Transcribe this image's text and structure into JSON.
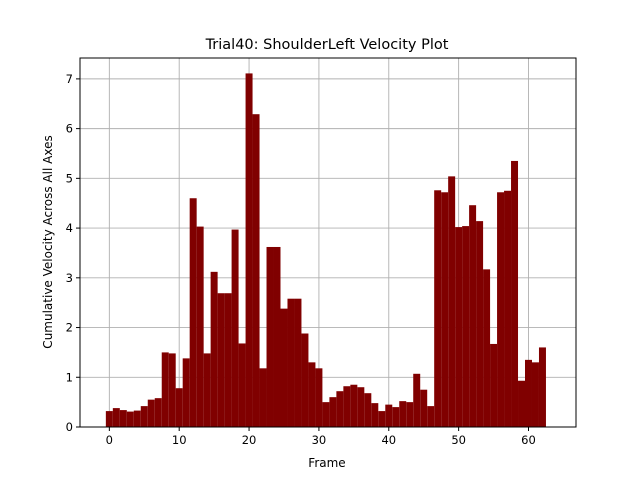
{
  "chart_data": {
    "type": "bar",
    "title": "Trial40: ShoulderLeft Velocity Plot",
    "xlabel": "Frame",
    "ylabel": "Cumulative Velocity Across All Axes",
    "xlim": [
      -4.2,
      66.8
    ],
    "ylim": [
      0,
      7.42
    ],
    "xticks": [
      0,
      10,
      20,
      30,
      40,
      50,
      60
    ],
    "yticks": [
      0,
      1,
      2,
      3,
      4,
      5,
      6,
      7
    ],
    "grid": true,
    "bar_color": "#800000",
    "x": [
      0,
      1,
      2,
      3,
      4,
      5,
      6,
      7,
      8,
      9,
      10,
      11,
      12,
      13,
      14,
      15,
      16,
      17,
      18,
      19,
      20,
      21,
      22,
      23,
      24,
      25,
      26,
      27,
      28,
      29,
      30,
      31,
      32,
      33,
      34,
      35,
      36,
      37,
      38,
      39,
      40,
      41,
      42,
      43,
      44,
      45,
      46,
      47,
      48,
      49,
      50,
      51,
      52,
      53,
      54,
      55,
      56,
      57,
      58,
      59,
      60,
      61,
      62,
      63
    ],
    "values": [
      0.32,
      0.38,
      0.34,
      0.31,
      0.33,
      0.42,
      0.55,
      0.58,
      1.5,
      1.48,
      0.78,
      1.38,
      4.6,
      4.03,
      1.48,
      3.12,
      2.69,
      2.69,
      3.97,
      1.68,
      7.11,
      6.29,
      1.18,
      3.62,
      3.62,
      2.38,
      2.58,
      2.58,
      1.88,
      1.3,
      1.18,
      0.5,
      0.6,
      0.72,
      0.82,
      0.85,
      0.8,
      0.68,
      0.48,
      0.32,
      0.45,
      0.4,
      0.52,
      0.5,
      1.07,
      0.75,
      0.42,
      4.76,
      4.72,
      5.04,
      4.02,
      4.04,
      4.46,
      4.14,
      3.17,
      1.67,
      4.72,
      4.75,
      5.35,
      0.93,
      1.35,
      1.3,
      1.6,
      0.0
    ]
  }
}
